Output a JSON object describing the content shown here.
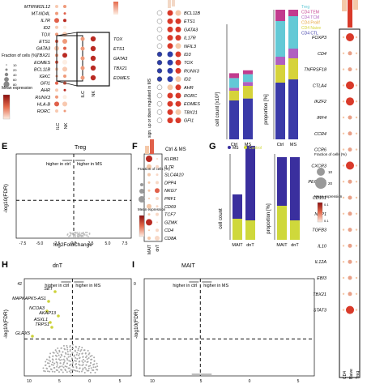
{
  "panel_letters": {
    "E": "E",
    "F": "F",
    "G": "G",
    "H": "H",
    "I": "I"
  },
  "top": {
    "genes_a": [
      "MTRNR2L12",
      "MT-ND4L",
      "IL7R",
      "ID2",
      "TOX",
      "ETS1",
      "GATA3",
      "TBX21",
      "EOMES",
      "BCL11B",
      "IGKC",
      "GFI1",
      "AHR",
      "RUNX3",
      "HLA-B",
      "RORC"
    ],
    "inset_genes": [
      "TOX",
      "ETS1",
      "GATA3",
      "TBX21",
      "EOMES"
    ],
    "cols_a": [
      "ILC",
      "NK"
    ],
    "legend_a": {
      "fraction_title": "Fraction of cells (%)",
      "fraction_vals": [
        "10",
        "20",
        "40",
        "60",
        "80"
      ],
      "mean_title": "Mean expression"
    },
    "genes_b": [
      "BCL11B",
      "ETS1",
      "GATA3",
      "IL17R",
      "NFIL3",
      "ID3",
      "TOX",
      "RUNX3",
      "ID2",
      "AHR",
      "RORC",
      "EOMES",
      "TBX21",
      "GFI1"
    ],
    "sig_label": "sign. up or down regulated in MS",
    "cc_label": "cell count [x10³]",
    "prop_label": "proportion [%]",
    "cols_cc": [
      "Ctrl",
      "MS"
    ],
    "legend_c": [
      "Treg",
      "CD4 TEM",
      "CD4 TCM",
      "CD4 Prolif",
      "CD4 Naive",
      "CD4 CTL"
    ],
    "legend_c_colors": [
      "#63c9d6",
      "#c23b8e",
      "#b05fc0",
      "#e6a43b",
      "#d6d33a",
      "#3a3aa8"
    ]
  },
  "right": {
    "genes": [
      "FOXP3",
      "CD4",
      "TNFRSF18",
      "CTLA4",
      "IKZF2",
      "IRF4",
      "CCR4",
      "CCR6",
      "CXCR3",
      "PECAM1",
      "CD101",
      "NRP1",
      "TGFB3",
      "IL10",
      "IL12A",
      "EBI3",
      "TBX21",
      "STAT3"
    ],
    "fraction_title": "Fraction of cells (%)",
    "fraction_vals": [
      "10",
      "20"
    ],
    "mean_title": "Mean expression",
    "mean_vals": [
      "0.1",
      "0.1"
    ],
    "cols": [
      "CD4",
      "Naive",
      "Treg"
    ]
  },
  "panel_e": {
    "title": "Treg",
    "arrow_left": "higher in ctrl",
    "arrow_right": "higher in MS",
    "xlabel": "log2FoldChange",
    "ylabel": "-log10(FDR)",
    "xticks": [
      "-7.5",
      "-5.0",
      "-2.5",
      "0.0",
      "2.5",
      "5.0",
      "7.5"
    ]
  },
  "panel_f": {
    "title": "Ctrl & MS",
    "genes": [
      "KLRB1",
      "IL7R",
      "SLC4A10",
      "DPP4",
      "NKG7",
      "PRF1",
      "CD69",
      "TCF7",
      "GZMK",
      "CD4",
      "CD8A"
    ],
    "cols": [
      "MAIT",
      "dnT"
    ],
    "fraction_title": "Fraction of cells (%)",
    "mean_title": "Mean expression"
  },
  "panel_g": {
    "legend": [
      "MS",
      "Control"
    ],
    "legend_colors": [
      "#3a2f9e",
      "#cfd83b"
    ],
    "cc_label": "cell count",
    "prop_label": "proportion [%]",
    "cols": [
      "MAIT",
      "dnT"
    ]
  },
  "panel_h": {
    "title": "dnT",
    "arrow_left": "higher in ctrl",
    "arrow_right": "higher in MS",
    "ylabel": "-log10(FDR)",
    "ytick_top": "42",
    "ytick_right": "0",
    "labels": [
      "SET",
      "MAPKAPK5-AS1",
      "NCOA3",
      "AKAP13",
      "ASXL1",
      "TRPS1",
      "GLRX5"
    ],
    "xticks": [
      "10",
      "5",
      "0",
      "5"
    ]
  },
  "panel_i": {
    "title": "MAIT",
    "arrow_left": "higher in ctrl",
    "arrow_right": "higher in MS",
    "ylabel": "-log10(FDR)",
    "xticks": [
      "10",
      "5",
      "0",
      "5"
    ]
  }
}
